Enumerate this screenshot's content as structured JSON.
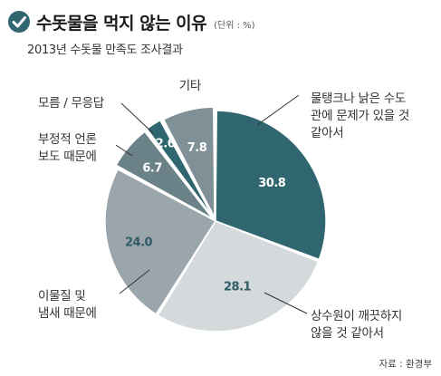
{
  "header": {
    "title": "수돗물을 먹지 않는 이유",
    "unit": "(단위 : %)",
    "subtitle": "2013년 수돗물 만족도 조사결과"
  },
  "source": "자료 : 환경부",
  "icons": {
    "title_icon": "check-icon"
  },
  "chart_data": {
    "type": "pie",
    "title": "수돗물을 먹지 않는 이유",
    "slices": [
      {
        "label_lines": [
          "물탱크나 낡은 수도",
          "관에 문제가 있을 것",
          "같아서"
        ],
        "value": 30.8,
        "value_text": "30.8",
        "color": "#2f6670",
        "text_color": "#ffffff"
      },
      {
        "label_lines": [
          "상수원이 깨끗하지",
          "않을 것 같아서"
        ],
        "value": 28.1,
        "value_text": "28.1",
        "color": "#d4d9dc",
        "text_color": "#2f5c66"
      },
      {
        "label_lines": [
          "이물질 및",
          "냄새 때문에"
        ],
        "value": 24.0,
        "value_text": "24.0",
        "color": "#9aa6ab",
        "text_color": "#2f5c66"
      },
      {
        "label_lines": [
          "부정적 언론",
          "보도 때문에"
        ],
        "value": 6.7,
        "value_text": "6.7",
        "color": "#6b8288",
        "text_color": "#ffffff"
      },
      {
        "label_lines": [
          "모름 / 무응답"
        ],
        "value": 2.6,
        "value_text": "2.6",
        "color": "#2f6670",
        "text_color": "#ffffff"
      },
      {
        "label_lines": [
          "기타"
        ],
        "value": 7.8,
        "value_text": "7.8",
        "color": "#7f9096",
        "text_color": "#ffffff"
      }
    ]
  }
}
